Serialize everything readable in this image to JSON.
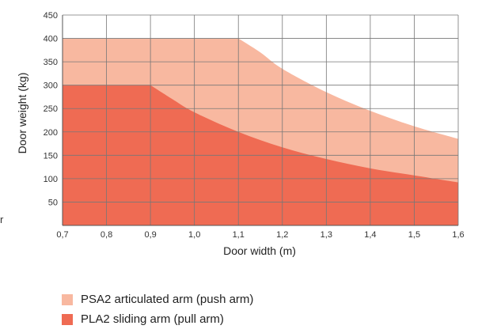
{
  "chart_data": {
    "type": "area",
    "xlabel": "Door width (m)",
    "ylabel": "Door weight (kg)",
    "xlim": [
      0.7,
      1.6
    ],
    "ylim": [
      0,
      450
    ],
    "x_ticks": [
      "0,7",
      "0,8",
      "0,9",
      "1,0",
      "1,1",
      "1,2",
      "1,3",
      "1,4",
      "1,5",
      "1,6"
    ],
    "y_ticks": [
      "50",
      "100",
      "150",
      "200",
      "250",
      "300",
      "350",
      "400",
      "450"
    ],
    "grid": true,
    "series": [
      {
        "name": "PSA2 articulated arm (push arm)",
        "color": "#f8b8a0",
        "x": [
          0.7,
          1.1,
          1.15,
          1.2,
          1.3,
          1.4,
          1.5,
          1.6
        ],
        "y": [
          400,
          400,
          370,
          335,
          285,
          245,
          212,
          185
        ]
      },
      {
        "name": "PLA2 sliding arm (pull arm)",
        "color": "#ef6b53",
        "x": [
          0.7,
          0.9,
          0.95,
          1.0,
          1.1,
          1.2,
          1.3,
          1.4,
          1.5,
          1.6
        ],
        "y": [
          300,
          300,
          270,
          242,
          200,
          167,
          142,
          122,
          107,
          92
        ]
      }
    ]
  },
  "stray_text": "r"
}
